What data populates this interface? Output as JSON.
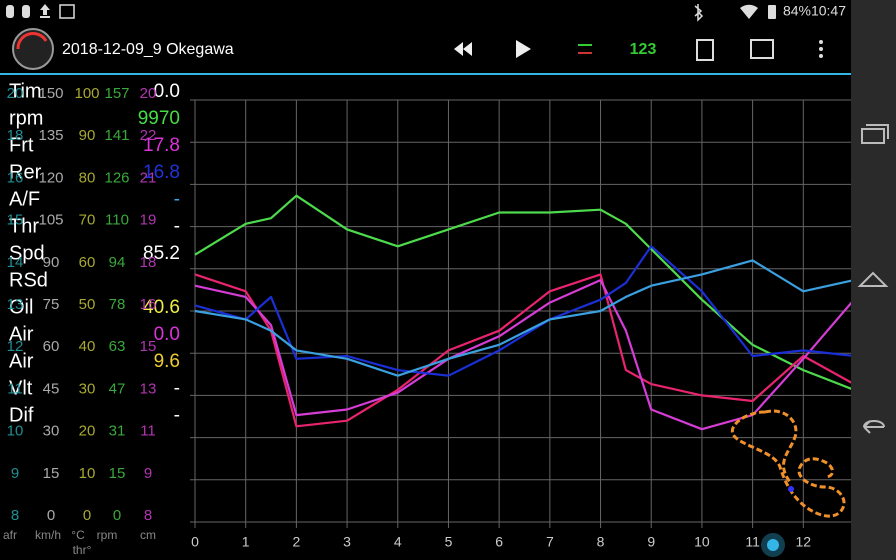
{
  "status_bar": {
    "battery": "84%",
    "time": "10:47"
  },
  "header": {
    "title": "2018-12-09_9 Okegawa",
    "counter": "123"
  },
  "channels": [
    {
      "label": "Tim",
      "value": "0.0",
      "color": "#ffffff"
    },
    {
      "label": "rpm",
      "value": "9970",
      "color": "#44dd44"
    },
    {
      "label": "Frt",
      "value": "17.8",
      "color": "#dd33dd"
    },
    {
      "label": "Rer",
      "value": "16.8",
      "color": "#2233dd"
    },
    {
      "label": "A/F",
      "value": "-",
      "color": "#33aaee"
    },
    {
      "label": "Thr",
      "value": "-",
      "color": "#ffffff"
    },
    {
      "label": "Spd",
      "value": "85.2",
      "color": "#ffffff"
    },
    {
      "label": "RSd",
      "value": "",
      "color": "#ffffff"
    },
    {
      "label": "Oil",
      "value": "40.6",
      "color": "#eeee44"
    },
    {
      "label": "Air",
      "value": "0.0",
      "color": "#dd33dd"
    },
    {
      "label": "Air",
      "value": "9.6",
      "color": "#eecc33"
    },
    {
      "label": "Vlt",
      "value": "-",
      "color": "#ffffff"
    },
    {
      "label": "Dif",
      "value": "-",
      "color": "#ffffff"
    }
  ],
  "scales": {
    "columns": [
      {
        "values": [
          20,
          18,
          16,
          15,
          14,
          13,
          12,
          11,
          10,
          9,
          8
        ],
        "color": "#1f8f95"
      },
      {
        "values": [
          100,
          90,
          80,
          70,
          60,
          50,
          40,
          30,
          20,
          10,
          0
        ],
        "color": "#a8a832"
      },
      {
        "values": [
          157,
          141,
          126,
          110,
          94,
          78,
          63,
          47,
          31,
          15,
          0
        ],
        "color": "#3aa83a"
      },
      {
        "values": [
          20,
          22,
          21,
          19,
          18,
          16,
          15,
          13,
          11,
          9,
          8
        ],
        "color": "#b036b0"
      }
    ],
    "units": [
      "afr",
      "km/h",
      "°C",
      "rpm",
      "cm",
      "thr°"
    ]
  },
  "chart_data": {
    "type": "line",
    "x": [
      0,
      1,
      1.5,
      2,
      3,
      4,
      5,
      6,
      7,
      8,
      8.5,
      9,
      10,
      11,
      12,
      13
    ],
    "series": [
      {
        "name": "rpm",
        "color": "#4ddb4d",
        "values": [
          95,
          106,
          108,
          116,
          104,
          98,
          104,
          110,
          110,
          111,
          106,
          97,
          79,
          63,
          54,
          47
        ]
      },
      {
        "name": "Oil",
        "color": "#e8246e",
        "values": [
          88,
          82,
          68,
          34,
          36,
          47,
          61,
          68,
          82,
          88,
          54,
          49,
          45,
          43,
          59,
          49
        ]
      },
      {
        "name": "Frt",
        "color": "#d63cd6",
        "values": [
          84,
          80,
          70,
          38,
          40,
          46,
          58,
          66,
          78,
          86,
          68,
          40,
          33,
          38,
          58,
          79
        ]
      },
      {
        "name": "Rer",
        "color": "#1b2fd6",
        "values": [
          77,
          72,
          80,
          58,
          59,
          54,
          52,
          61,
          72,
          79,
          85,
          98,
          82,
          59,
          61,
          59
        ]
      },
      {
        "name": "A/F",
        "color": "#3aa0e0",
        "values": [
          75,
          72,
          68,
          61,
          58,
          52,
          58,
          63,
          72,
          75,
          80,
          84,
          88,
          93,
          82,
          86
        ]
      }
    ],
    "xlim": [
      0,
      13
    ],
    "xticks": [
      0,
      1,
      2,
      3,
      4,
      5,
      6,
      7,
      8,
      9,
      10,
      11,
      12
    ],
    "ylim": [
      0,
      150
    ],
    "yticks": [
      150,
      135,
      120,
      105,
      90,
      75,
      60,
      45,
      30,
      15,
      0
    ],
    "grid": true
  }
}
